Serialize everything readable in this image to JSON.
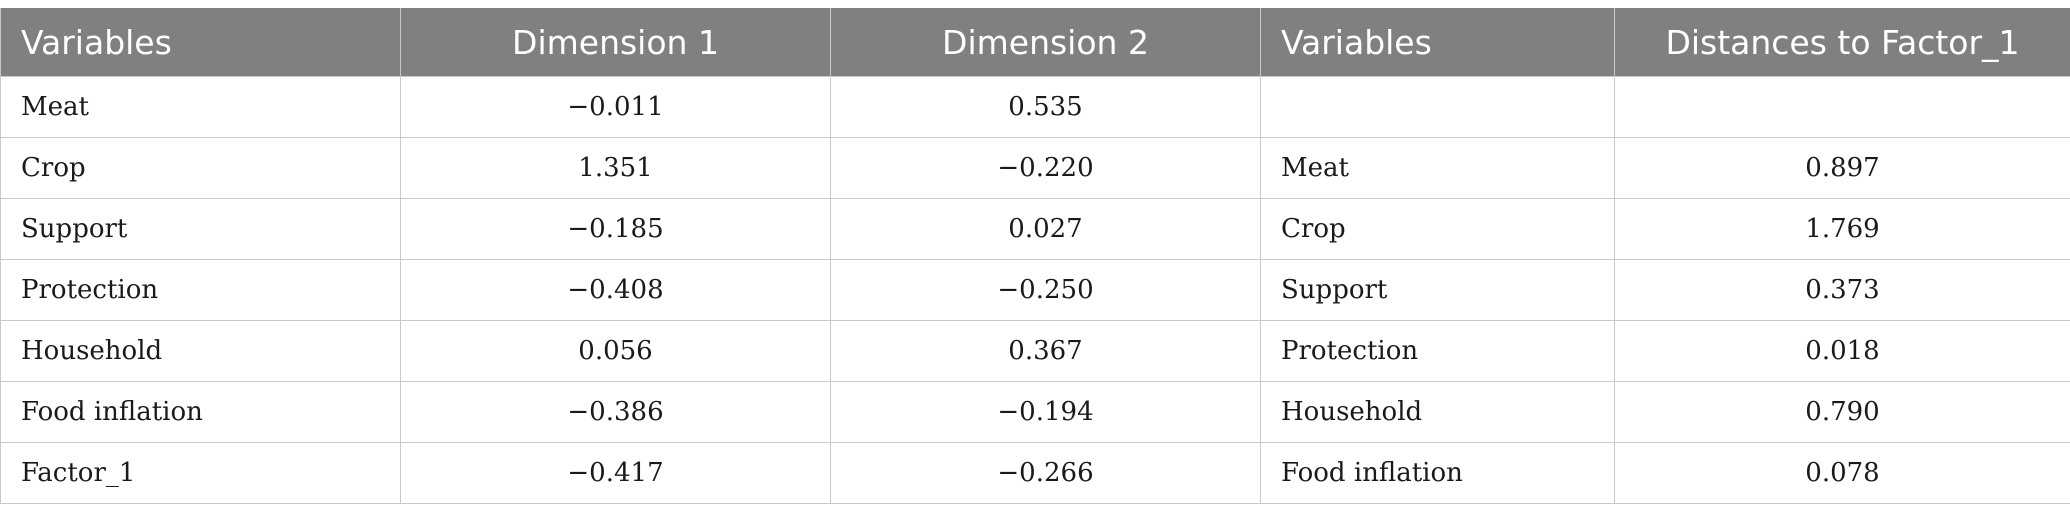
{
  "table": {
    "headers": [
      "Variables",
      "Dimension 1",
      "Dimension 2",
      "Variables",
      "Distances to Factor_1"
    ],
    "rows": [
      [
        "Meat",
        "−0.011",
        "0.535",
        "",
        ""
      ],
      [
        "Crop",
        "1.351",
        "−0.220",
        "Meat",
        "0.897"
      ],
      [
        "Support",
        "−0.185",
        "0.027",
        "Crop",
        "1.769"
      ],
      [
        "Protection",
        "−0.408",
        "−0.250",
        "Support",
        "0.373"
      ],
      [
        "Household",
        "0.056",
        "0.367",
        "Protection",
        "0.018"
      ],
      [
        "Food inflation",
        "−0.386",
        "−0.194",
        "Household",
        "0.790"
      ],
      [
        "Factor_1",
        "−0.417",
        "−0.266",
        "Food inflation",
        "0.078"
      ]
    ]
  },
  "colors": {
    "header_bg": "#7f807f",
    "header_text": "#ffffff",
    "grid": "#c9c9c9"
  }
}
